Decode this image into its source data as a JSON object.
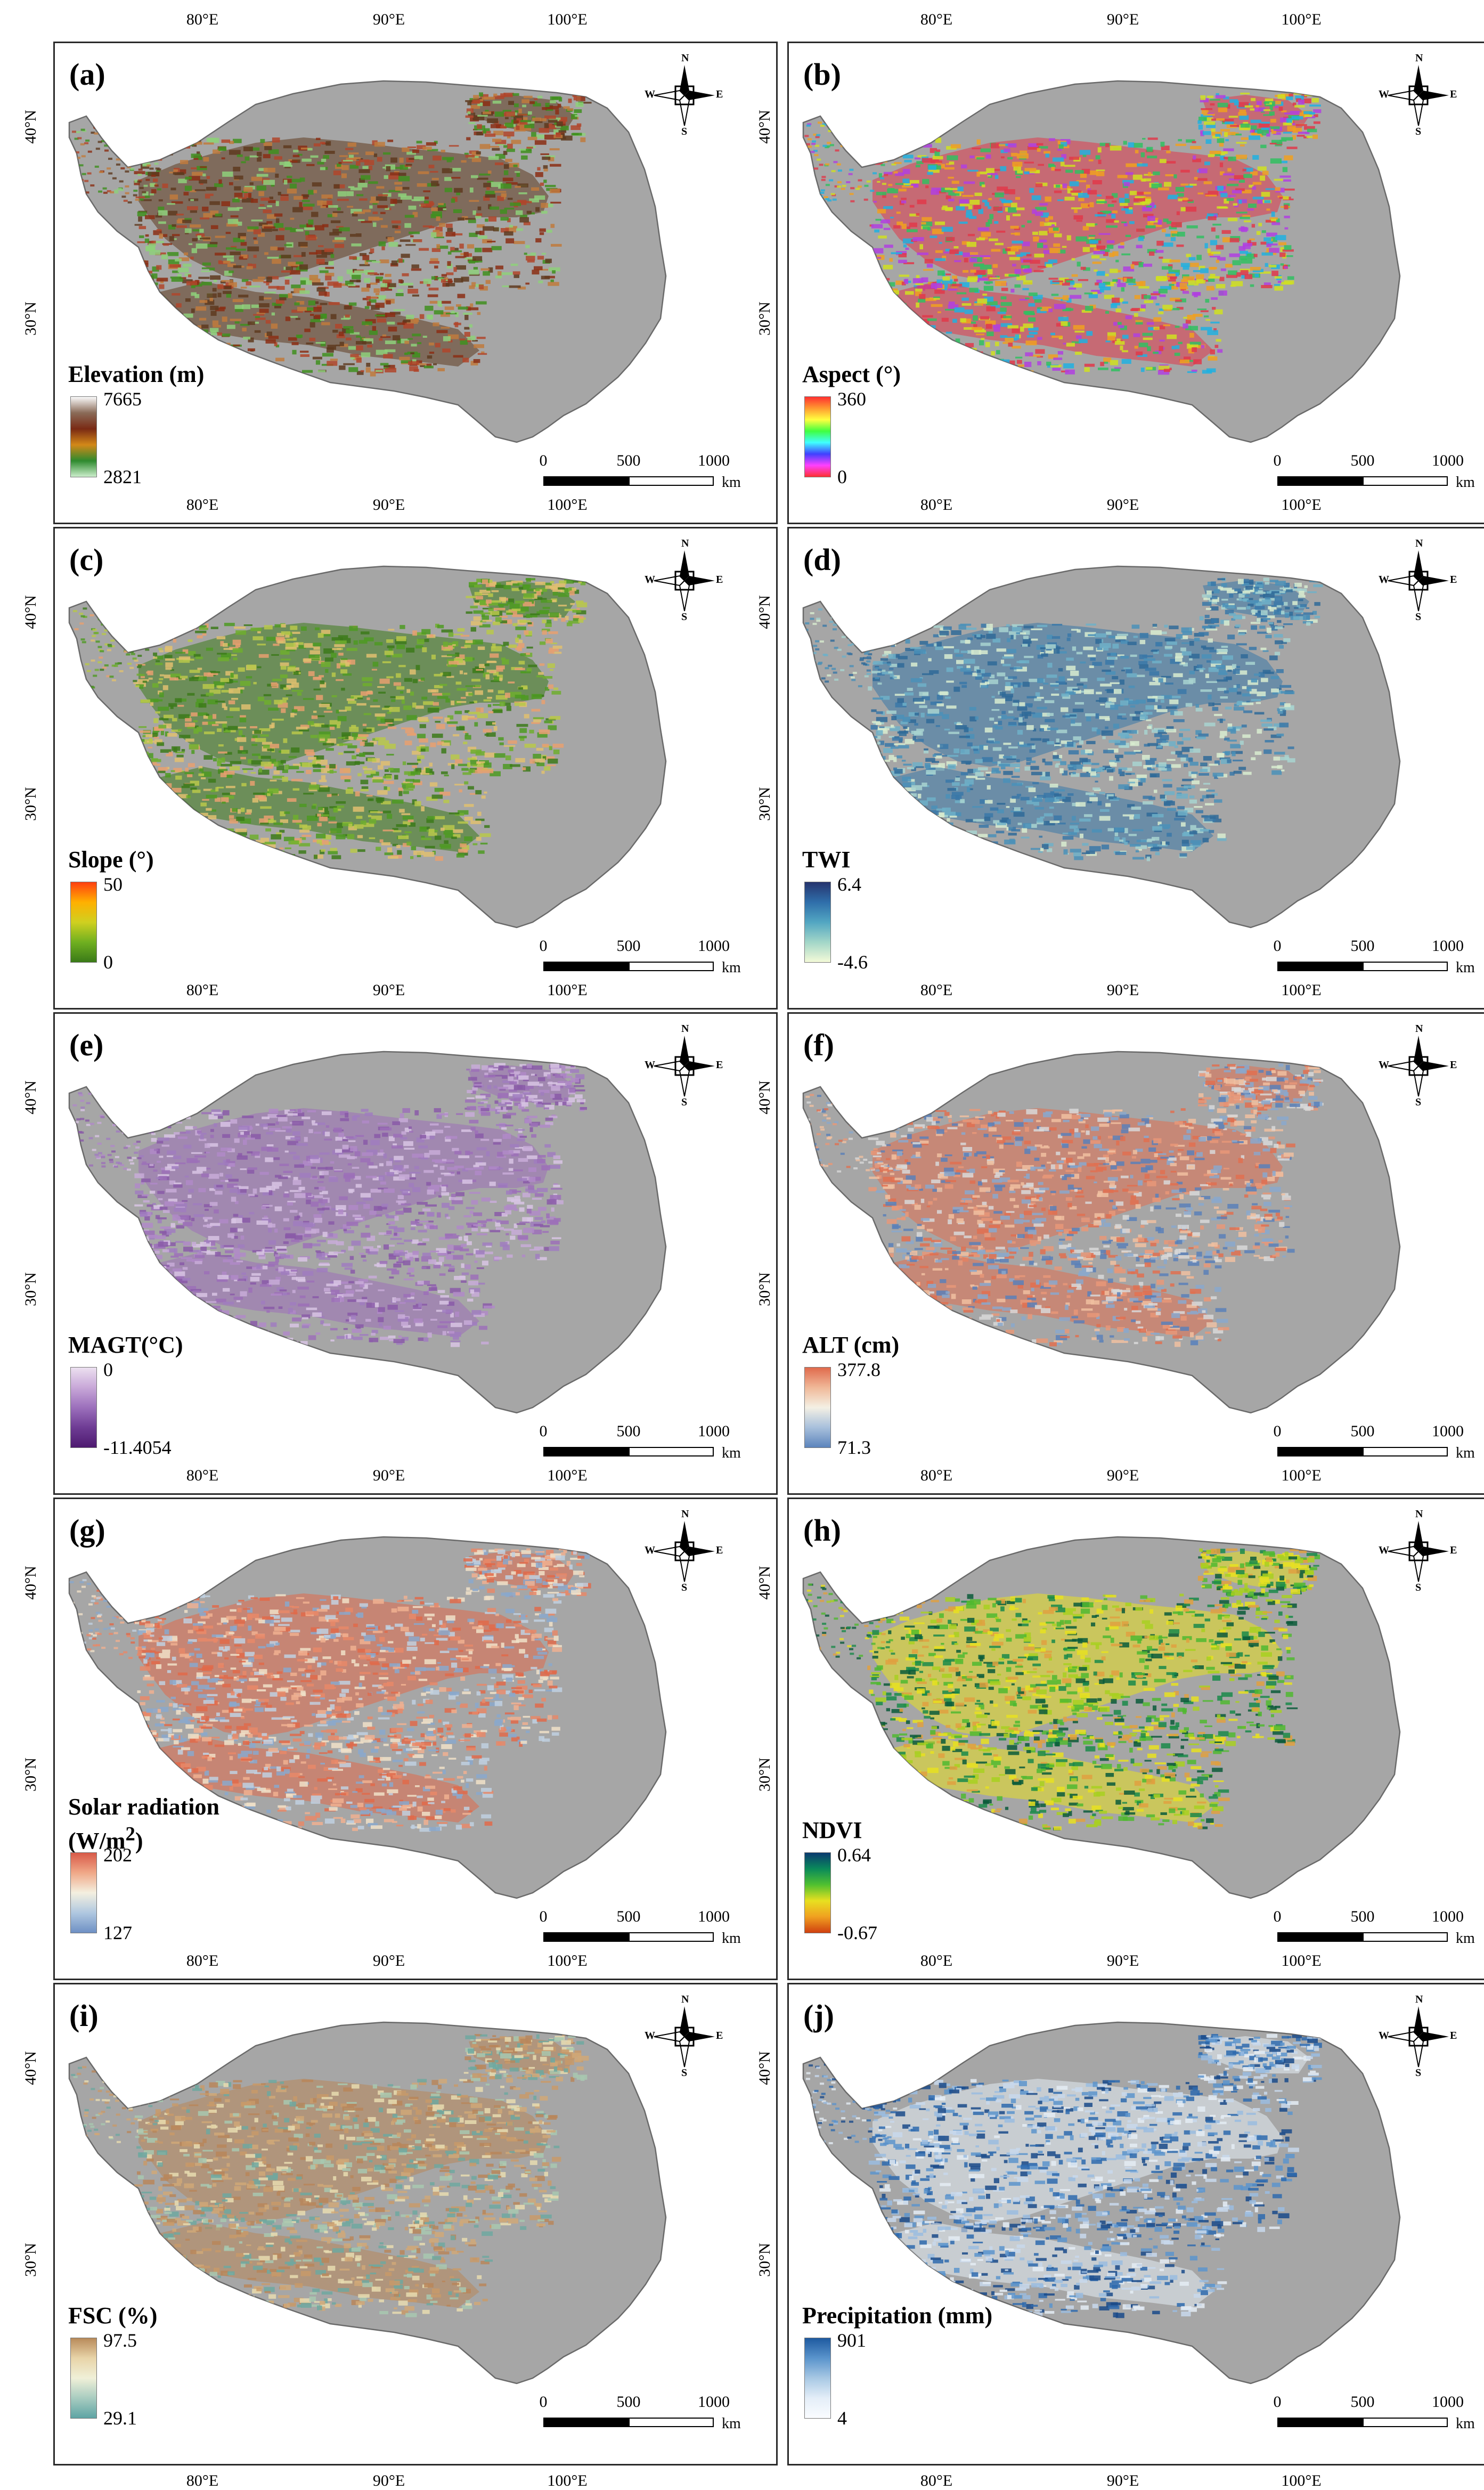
{
  "figure": {
    "longitude_labels": [
      "80°E",
      "90°E",
      "100°E"
    ],
    "latitude_labels": [
      "40°N",
      "30°N"
    ],
    "scale_bar": {
      "ticks": [
        "0",
        "500",
        "1000"
      ],
      "unit": "km"
    },
    "compass": {
      "n": "N",
      "e": "E",
      "s": "S",
      "w": "W"
    },
    "panels": [
      {
        "letter": "(a)",
        "title": "Elevation (m)",
        "max": "7665",
        "min": "2821",
        "base_color": "#a6a6a6",
        "palette": [
          "#5e3a1f",
          "#8b2e14",
          "#b0452a",
          "#c07a3c",
          "#3f8f1f",
          "#8ed07a"
        ],
        "colorbar": [
          "#fafafa",
          "#8a6b58",
          "#7a2a14",
          "#d48818",
          "#2e8a2e",
          "#cbeecb"
        ]
      },
      {
        "letter": "(b)",
        "title": "Aspect (°)",
        "max": "360",
        "min": "0",
        "base_color": "#a6a6a6",
        "palette": [
          "#e0384a",
          "#f0a020",
          "#d0e020",
          "#30c060",
          "#20b0e0",
          "#b040e0"
        ],
        "colorbar": [
          "#ff3030",
          "#ff9a30",
          "#ffff40",
          "#40ff40",
          "#40ffff",
          "#4040ff",
          "#ff40ff",
          "#ff3030"
        ]
      },
      {
        "letter": "(c)",
        "title": "Slope (°)",
        "max": "50",
        "min": "0",
        "base_color": "#a6a6a6",
        "palette": [
          "#3c7a1a",
          "#4e9a22",
          "#6fae2e",
          "#b8c84a",
          "#e0c070",
          "#e8a070"
        ],
        "colorbar": [
          "#ff4010",
          "#ffb000",
          "#d0d020",
          "#70b020",
          "#3a7a18"
        ]
      },
      {
        "letter": "(d)",
        "title": "TWI",
        "max": "6.4",
        "min": "-4.6",
        "base_color": "#a6a6a6",
        "palette": [
          "#3a78a8",
          "#4a90b8",
          "#6fb0c8",
          "#a8d4d0",
          "#d8ecd0",
          "#2f6a98"
        ],
        "colorbar": [
          "#26346e",
          "#2f6eaa",
          "#52a6c2",
          "#a2d6c8",
          "#f4fad8"
        ]
      },
      {
        "letter": "(e)",
        "title": "MAGT(°C)",
        "max": "0",
        "min": "-11.4054",
        "base_color": "#a6a6a6",
        "palette": [
          "#9c70b8",
          "#b08ac8",
          "#c8acd8",
          "#8a5aa8",
          "#d8c4e4",
          "#a07cc0"
        ],
        "colorbar": [
          "#ece0f0",
          "#c8a8d8",
          "#9c70bc",
          "#6e3c94",
          "#4e1a70"
        ]
      },
      {
        "letter": "(f)",
        "title": "ALT (cm)",
        "max": "377.8",
        "min": "71.3",
        "base_color": "#a6a6a6",
        "palette": [
          "#e07050",
          "#e89878",
          "#f0c0a0",
          "#d8d8d8",
          "#8aa8cc",
          "#5a80b8"
        ],
        "colorbar": [
          "#e06a4c",
          "#f0b898",
          "#f4f0e4",
          "#a8c0dc",
          "#5c84bc"
        ]
      },
      {
        "letter": "(g)",
        "title": "Solar radiation",
        "title2_html": "(W/m<sup>2</sup>)",
        "max": "202",
        "min": "127",
        "base_color": "#a6a6a6",
        "palette": [
          "#e06a4a",
          "#e88868",
          "#f0b090",
          "#f0e0c8",
          "#c0d0e0",
          "#8aa8cc"
        ],
        "colorbar": [
          "#d85a48",
          "#f0a888",
          "#f4f0e0",
          "#b0c8e0",
          "#6e90c4"
        ]
      },
      {
        "letter": "(h)",
        "title": "NDVI",
        "max": "0.64",
        "min": "-0.67",
        "base_color": "#a6a6a6",
        "palette": [
          "#e8e020",
          "#a8d020",
          "#50b830",
          "#1a8a4a",
          "#0a5a3a",
          "#e0a040"
        ],
        "colorbar": [
          "#0a3a70",
          "#0a8a5a",
          "#50c030",
          "#e8e020",
          "#f0a020",
          "#d04010"
        ]
      },
      {
        "letter": "(i)",
        "title": "FSC (%)",
        "max": "97.5",
        "min": "29.1",
        "base_color": "#a6a6a6",
        "palette": [
          "#b8865a",
          "#d0a878",
          "#e8dcb0",
          "#a8c8b0",
          "#6ea8a0",
          "#c89a6a"
        ],
        "colorbar": [
          "#b88a5a",
          "#e8d4a8",
          "#f0f0d8",
          "#a8ccc0",
          "#5ea4a4"
        ]
      },
      {
        "letter": "(j)",
        "title": "Precipitation (mm)",
        "max": "901",
        "min": "4",
        "base_color": "#a6a6a6",
        "palette": [
          "#e4ecf4",
          "#c8d8ec",
          "#9abce0",
          "#5c94cc",
          "#2e6aae",
          "#1a4a8a"
        ],
        "colorbar": [
          "#1e5aa0",
          "#5a94cc",
          "#a8c8e4",
          "#e4eef8",
          "#fafcff"
        ]
      }
    ]
  }
}
